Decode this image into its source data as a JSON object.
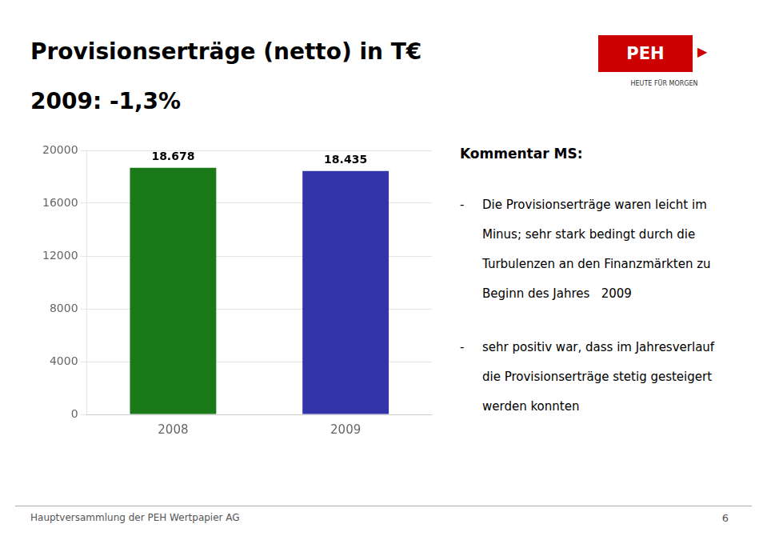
{
  "chart_data": {
    "type": "bar",
    "title": "Provisionserträge (netto) in T€",
    "subtitle": "2009: -1,3%",
    "categories": [
      "2008",
      "2009"
    ],
    "values": [
      18678,
      18435
    ],
    "value_labels": [
      "18.678",
      "18.435"
    ],
    "colors": [
      "#1a7a1a",
      "#3333aa"
    ],
    "ylim": [
      0,
      20000
    ],
    "yticks": [
      0,
      4000,
      8000,
      12000,
      16000,
      20000
    ],
    "grid": true,
    "data_labels": true,
    "annotations": [
      "PEH",
      "▶",
      "HEUTE FÜR MORGEN",
      "Kommentar MS:",
      "- Die Provisionserträge waren leicht im",
      "Minus; sehr stark bedingt durch die",
      "Turbulenzen an den Finanzmärkten zu",
      "Beginn des Jahres   2009",
      "- sehr positiv war, dass im Jahresverlauf",
      "die Provisionserträge stetig gesteigert",
      "werden konnten",
      "Hauptversammlung der PEH Wertpapier AG",
      "6"
    ]
  }
}
